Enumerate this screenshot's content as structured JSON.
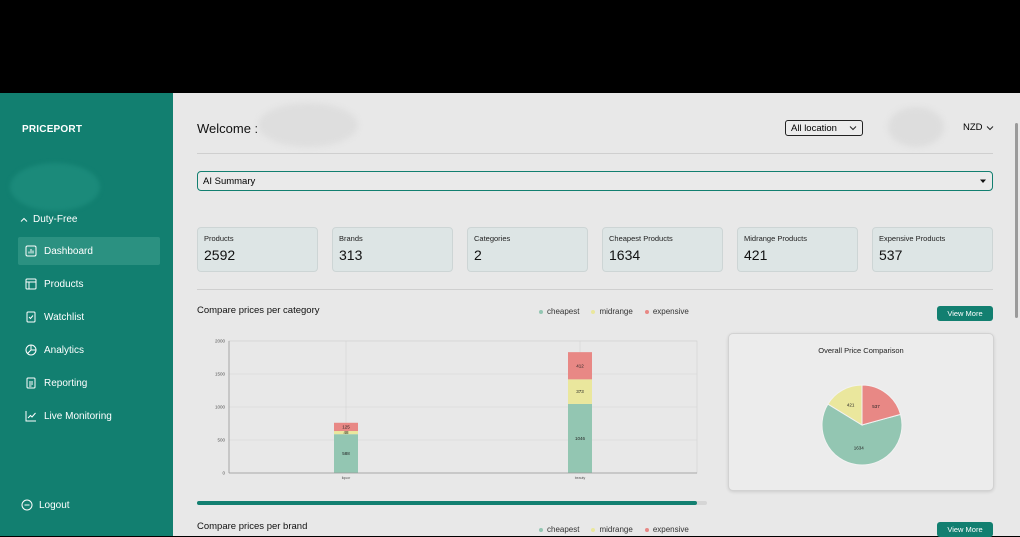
{
  "sidebar": {
    "brand": "PRICEPORT",
    "group": "Duty-Free",
    "items": [
      {
        "label": "Dashboard",
        "icon": "dashboard-icon"
      },
      {
        "label": "Products",
        "icon": "products-icon"
      },
      {
        "label": "Watchlist",
        "icon": "watchlist-icon"
      },
      {
        "label": "Analytics",
        "icon": "analytics-icon"
      },
      {
        "label": "Reporting",
        "icon": "reporting-icon"
      },
      {
        "label": "Live Monitoring",
        "icon": "live-monitoring-icon"
      }
    ],
    "logout": "Logout"
  },
  "header": {
    "welcome": "Welcome :",
    "location": "All location",
    "currency": "NZD"
  },
  "ai_summary": "AI Summary",
  "stats": [
    {
      "label": "Products",
      "value": "2592"
    },
    {
      "label": "Brands",
      "value": "313"
    },
    {
      "label": "Categories",
      "value": "2"
    },
    {
      "label": "Cheapest Products",
      "value": "1634"
    },
    {
      "label": "Midrange Products",
      "value": "421"
    },
    {
      "label": "Expensive Products",
      "value": "537"
    }
  ],
  "section_category": {
    "title": "Compare prices per category",
    "legend": [
      "cheapest",
      "midrange",
      "expensive"
    ],
    "view_more": "View More"
  },
  "section_brand": {
    "title": "Compare prices per brand",
    "legend": [
      "cheapest",
      "midrange",
      "expensive"
    ],
    "view_more": "View More"
  },
  "colors": {
    "cheapest": "#93c6b2",
    "midrange": "#eae79d",
    "expensive": "#e88885",
    "accent": "#127f70"
  },
  "scroll_progress": 0.98,
  "chart_data": [
    {
      "type": "bar",
      "stacked": true,
      "categories": [
        "liquor",
        "beauty"
      ],
      "series": [
        {
          "name": "cheapest",
          "values": [
            588,
            1046
          ]
        },
        {
          "name": "midrange",
          "values": [
            48,
            373
          ]
        },
        {
          "name": "expensive",
          "values": [
            125,
            412
          ]
        }
      ],
      "ylim": [
        0,
        2000
      ],
      "yticks": [
        0,
        500,
        1000,
        1500,
        2000
      ],
      "grid": true
    },
    {
      "type": "pie",
      "title": "Overall Price Comparison",
      "labels": [
        "cheapest",
        "midrange",
        "expensive"
      ],
      "values": [
        1634,
        421,
        537
      ]
    }
  ]
}
